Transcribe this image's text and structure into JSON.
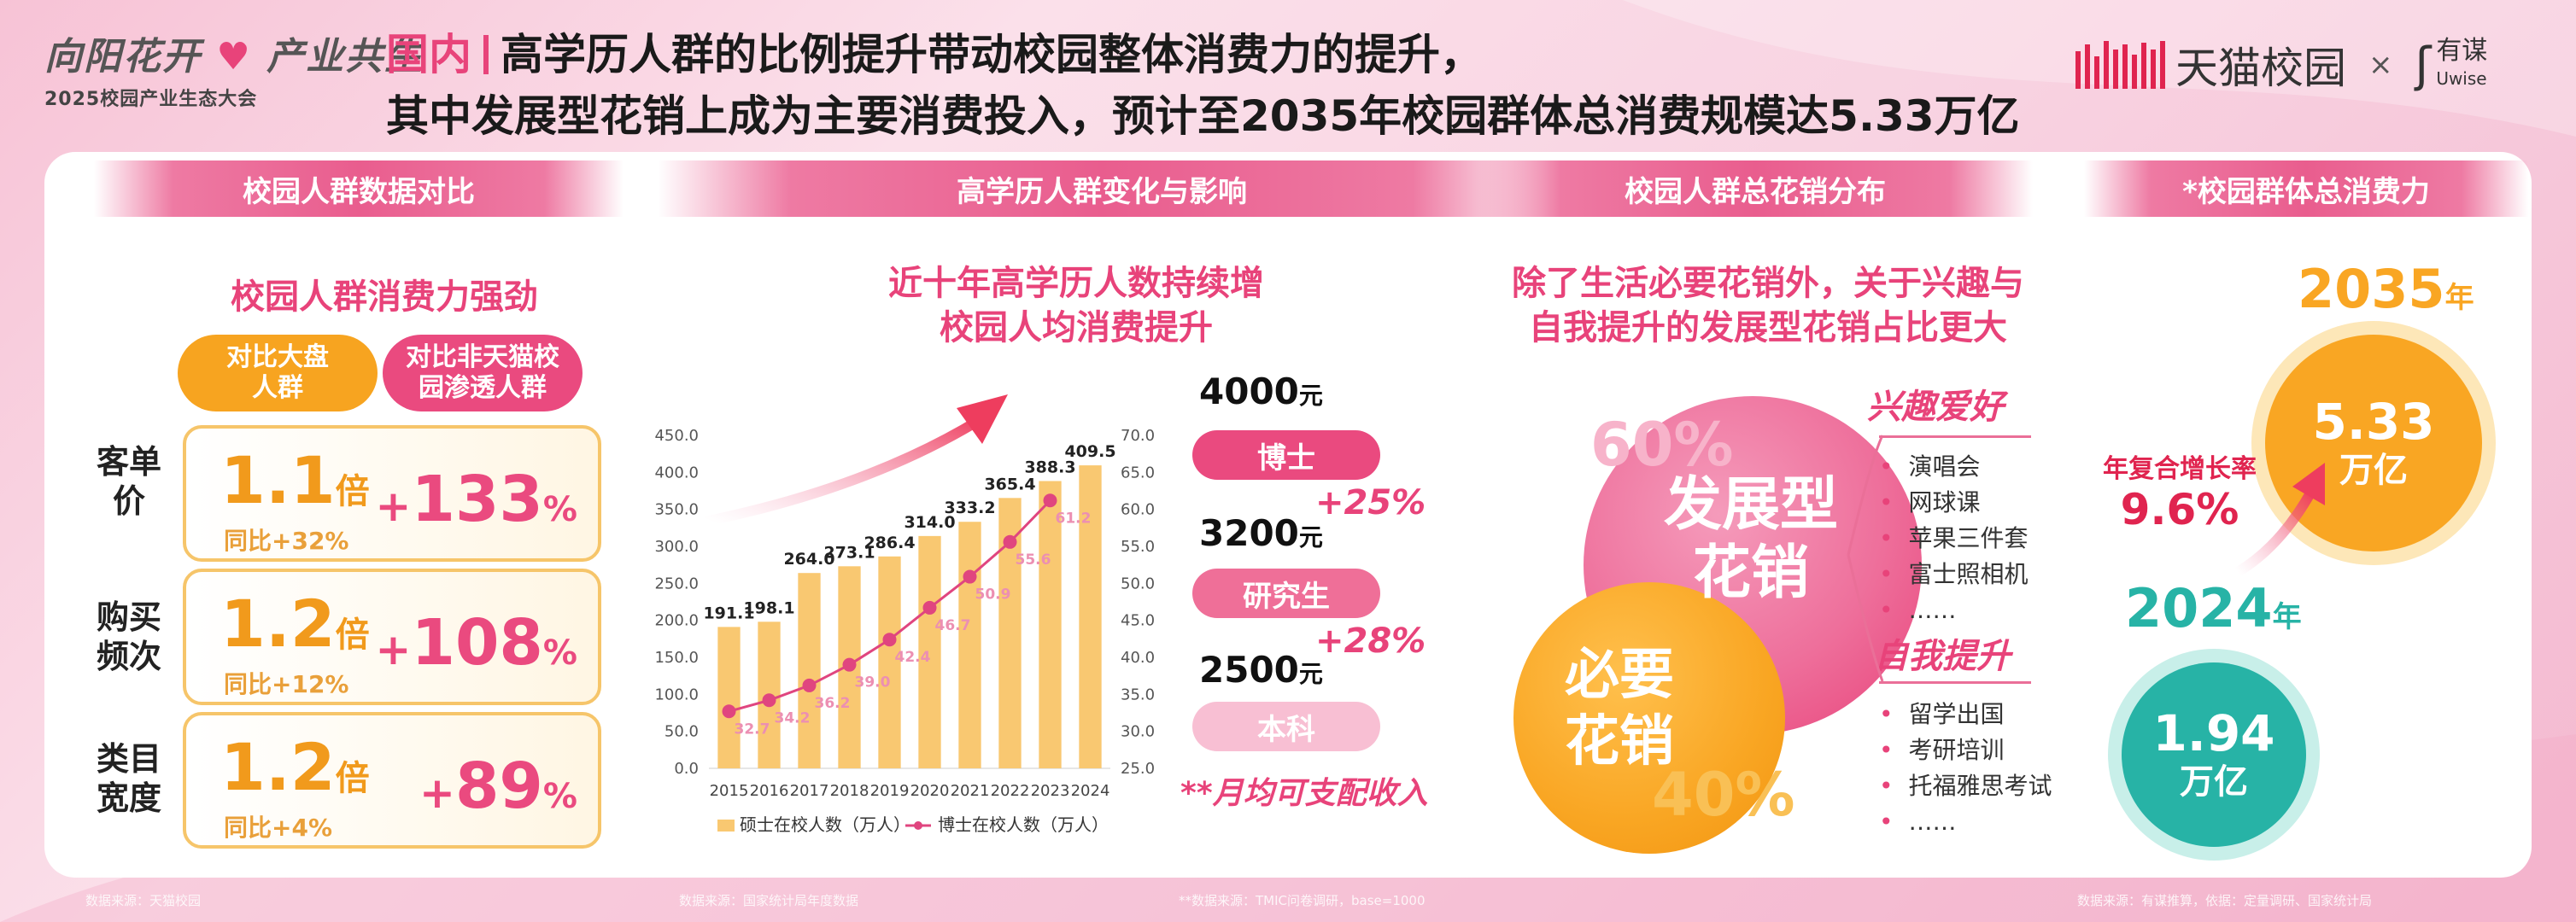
{
  "header": {
    "logo_title": "向阳花开·产业共生",
    "logo_title_a": "向阳花开",
    "logo_title_b": "产业共生",
    "logo_subtitle": "2025校园产业生态大会",
    "tag": "国内",
    "headline_line1": "高学历人群的比例提升带动校园整体消费力的提升，",
    "headline_line2": "其中发展型花销上成为主要消费投入，预计至2035年校园群体总消费规模达5.33万亿",
    "brand1": "天猫校园",
    "brand_sep": "×",
    "brand2": "有谋",
    "brand2_sub": "Uwise"
  },
  "sections": {
    "s1": {
      "title": "校园人群数据对比",
      "subtitle": "校园人群消费力强劲",
      "pill_a": "对比大盘\n人群",
      "pill_b": "对比非天猫校\n园渗透人群",
      "rows": [
        {
          "label": "客单\n价",
          "mult": "1.1",
          "unit": "倍",
          "yoy": "同比+32%",
          "vs": "133",
          "vs_unit": "%"
        },
        {
          "label": "购买\n频次",
          "mult": "1.2",
          "unit": "倍",
          "yoy": "同比+12%",
          "vs": "108",
          "vs_unit": "%"
        },
        {
          "label": "类目\n宽度",
          "mult": "1.2",
          "unit": "倍",
          "yoy": "同比+4%",
          "vs": "89",
          "vs_unit": "%"
        }
      ]
    },
    "s2": {
      "title": "高学历人群变化与影响",
      "subtitle": "近十年高学历人数持续增\n校园人均消费提升",
      "income": [
        {
          "value": "4000",
          "unit": "元",
          "label": "博士",
          "pct": "+25%"
        },
        {
          "value": "3200",
          "unit": "元",
          "label": "研究生",
          "pct": "+28%"
        },
        {
          "value": "2500",
          "unit": "元",
          "label": "本科",
          "pct": ""
        }
      ],
      "note": "**月均可支配收入"
    },
    "s3": {
      "title": "校园人群总花销分布",
      "subtitle": "除了生活必要花销外，关于兴趣与\n自我提升的发展型花销占比更大",
      "big_pct": "60%",
      "big_label": "发展型\n花销",
      "small_pct": "40%",
      "small_label": "必要\n花销",
      "cat1": "兴趣爱好",
      "cat1_items": [
        "演唱会",
        "网球课",
        "苹果三件套",
        "富士照相机",
        "……"
      ],
      "cat2": "自我提升",
      "cat2_items": [
        "留学出国",
        "考研培训",
        "托福雅思考试",
        "……"
      ]
    },
    "s4": {
      "title": "*校园群体总消费力",
      "year_2035": "2035",
      "year_2024": "2024",
      "year_unit": "年",
      "val_2035": "5.33",
      "val_2024": "1.94",
      "val_unit": "万亿",
      "cagr_label": "年复合增长率",
      "cagr_value": "9.6%"
    }
  },
  "footer": {
    "f1": "数据来源：天猫校园",
    "f2": "数据来源：国家统计局年度数据",
    "f3": "**数据来源：TMIC问卷调研，base=1000",
    "f4": "数据来源：有谋推算，依据：定量调研、国家统计局"
  },
  "colors": {
    "accent": "#e8437a",
    "orange": "#f9a623",
    "teal": "#27b3a6",
    "bar": "#f9c871",
    "line": "#e0457f"
  },
  "chart_data": {
    "type": "bar",
    "categories": [
      "2015",
      "2016",
      "2017",
      "2018",
      "2019",
      "2020",
      "2021",
      "2022",
      "2023",
      "2024"
    ],
    "series": [
      {
        "name": "硕士在校人数（万人）",
        "type": "bar",
        "axis": "left",
        "values": [
          191.1,
          198.1,
          264.0,
          273.1,
          286.4,
          314.0,
          333.2,
          365.4,
          388.3,
          409.5
        ]
      },
      {
        "name": "博士在校人数（万人）",
        "type": "line",
        "axis": "right",
        "values": [
          32.7,
          34.2,
          36.2,
          39.0,
          42.4,
          46.7,
          50.9,
          55.6,
          61.2,
          null
        ]
      }
    ],
    "left_ticks": [
      "450.0",
      "400.0",
      "350.0",
      "300.0",
      "250.0",
      "200.0",
      "150.0",
      "100.0",
      "50.0",
      "0.0"
    ],
    "right_ticks": [
      "70.0",
      "65.0",
      "60.0",
      "55.0",
      "50.0",
      "45.0",
      "40.0",
      "35.0",
      "30.0",
      "25.0"
    ],
    "left_ylim": [
      0,
      450
    ],
    "right_ylim": [
      25,
      70
    ],
    "bar_labels": [
      "191.1",
      "198.1",
      "264.0",
      "273.1",
      "286.4",
      "314.0",
      "333.2",
      "365.4",
      "388.3",
      "409.5"
    ],
    "line_labels": [
      "32.7",
      "34.2",
      "36.2",
      "39.0",
      "42.4",
      "46.7",
      "50.9",
      "55.6",
      "61.2",
      ""
    ],
    "legend_position": "bottom"
  }
}
